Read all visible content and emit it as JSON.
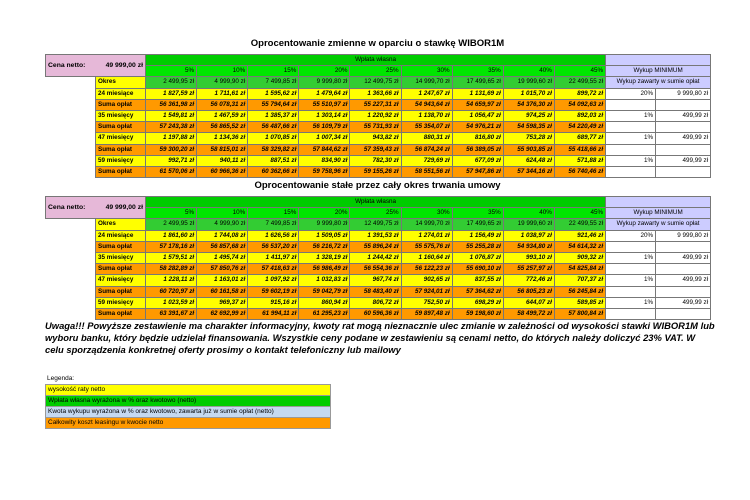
{
  "tables": [
    {
      "title": "Oprocentowanie zmienne w oparciu o stawkę WIBOR1M",
      "price_label": "Cena netto:",
      "price": "49 999,00 zł",
      "group_header": "Wpłata własna",
      "percents": [
        "5%",
        "10%",
        "15%",
        "20%",
        "25%",
        "30%",
        "35%",
        "40%",
        "45%"
      ],
      "buyout_header": "Wykup MINIMUM",
      "period_label": "Okres",
      "down_payments": [
        "2 499,95 zł",
        "4 999,90 zł",
        "7 499,85 zł",
        "9 999,80 zł",
        "12 499,75 zł",
        "14 999,70 zł",
        "17 499,65 zł",
        "19 999,60 zł",
        "22 499,55 zł"
      ],
      "buyout_included_label": "Wykup zawarty w sumie opłat",
      "rows": [
        {
          "period": "24 miesiące",
          "installments": [
            "1 827,59 zł",
            "1 711,61 zł",
            "1 595,62 zł",
            "1 479,64 zł",
            "1 363,66 zł",
            "1 247,67 zł",
            "1 131,69 zł",
            "1 015,70 zł",
            "899,72 zł"
          ],
          "buyout_pct": "20%",
          "buyout_amount": "9 999,80 zł",
          "total_label": "Suma opłat",
          "totals": [
            "56 361,98 zł",
            "56 078,31 zł",
            "55 794,64 zł",
            "55 510,97 zł",
            "55 227,31 zł",
            "54 943,64 zł",
            "54 659,97 zł",
            "54 376,30 zł",
            "54 092,63 zł"
          ]
        },
        {
          "period": "35 miesięcy",
          "installments": [
            "1 549,81 zł",
            "1 467,59 zł",
            "1 385,37 zł",
            "1 303,14 zł",
            "1 220,92 zł",
            "1 138,70 zł",
            "1 056,47 zł",
            "974,25 zł",
            "892,03 zł"
          ],
          "buyout_pct": "1%",
          "buyout_amount": "499,99 zł",
          "total_label": "Suma opłat",
          "totals": [
            "57 243,38 zł",
            "56 865,52 zł",
            "56 487,66 zł",
            "56 109,79 zł",
            "55 731,93 zł",
            "55 354,07 zł",
            "54 976,21 zł",
            "54 598,35 zł",
            "54 220,49 zł"
          ]
        },
        {
          "period": "47 miesięcy",
          "installments": [
            "1 197,88 zł",
            "1 134,36 zł",
            "1 070,85 zł",
            "1 007,34 zł",
            "943,82 zł",
            "880,31 zł",
            "816,80 zł",
            "753,28 zł",
            "689,77 zł"
          ],
          "buyout_pct": "1%",
          "buyout_amount": "499,99 zł",
          "total_label": "Suma opłat",
          "totals": [
            "59 300,20 zł",
            "58 815,01 zł",
            "58 329,82 zł",
            "57 844,62 zł",
            "57 359,43 zł",
            "56 874,24 zł",
            "56 389,05 zł",
            "55 903,85 zł",
            "55 418,66 zł"
          ]
        },
        {
          "period": "59 miesięcy",
          "installments": [
            "992,71 zł",
            "940,11 zł",
            "887,51 zł",
            "834,90 zł",
            "782,30 zł",
            "729,69 zł",
            "677,09 zł",
            "624,48 zł",
            "571,88 zł"
          ],
          "buyout_pct": "1%",
          "buyout_amount": "499,99 zł",
          "total_label": "Suma opłat",
          "totals": [
            "61 570,06 zł",
            "60 966,36 zł",
            "60 362,66 zł",
            "59 758,96 zł",
            "59 155,26 zł",
            "58 551,56 zł",
            "57 947,86 zł",
            "57 344,16 zł",
            "56 740,46 zł"
          ]
        }
      ]
    },
    {
      "title": "Oprocentowanie stałe przez cały okres trwania umowy",
      "price_label": "Cena netto:",
      "price": "49 999,00 zł",
      "group_header": "Wpłata własna",
      "percents": [
        "5%",
        "10%",
        "15%",
        "20%",
        "25%",
        "30%",
        "35%",
        "40%",
        "45%"
      ],
      "buyout_header": "Wykup MINIMUM",
      "period_label": "Okres",
      "down_payments": [
        "2 499,95 zł",
        "4 999,90 zł",
        "7 499,85 zł",
        "9 999,80 zł",
        "12 499,75 zł",
        "14 999,70 zł",
        "17 499,65 zł",
        "19 999,60 zł",
        "22 499,55 zł"
      ],
      "buyout_included_label": "Wykup zawarty w sumie opłat",
      "rows": [
        {
          "period": "24 miesiące",
          "installments": [
            "1 861,60 zł",
            "1 744,08 zł",
            "1 626,56 zł",
            "1 509,05 zł",
            "1 391,53 zł",
            "1 274,01 zł",
            "1 156,49 zł",
            "1 038,97 zł",
            "921,46 zł"
          ],
          "buyout_pct": "20%",
          "buyout_amount": "9 999,80 zł",
          "total_label": "Suma opłat",
          "totals": [
            "57 178,16 zł",
            "56 857,68 zł",
            "56 537,20 zł",
            "56 216,72 zł",
            "55 896,24 zł",
            "55 575,76 zł",
            "55 255,28 zł",
            "54 934,80 zł",
            "54 614,32 zł"
          ]
        },
        {
          "period": "35 miesięcy",
          "installments": [
            "1 579,51 zł",
            "1 495,74 zł",
            "1 411,97 zł",
            "1 328,19 zł",
            "1 244,42 zł",
            "1 160,64 zł",
            "1 076,87 zł",
            "993,10 zł",
            "909,32 zł"
          ],
          "buyout_pct": "1%",
          "buyout_amount": "499,99 zł",
          "total_label": "Suma opłat",
          "totals": [
            "58 282,89 zł",
            "57 850,76 zł",
            "57 418,63 zł",
            "56 986,49 zł",
            "56 554,36 zł",
            "56 122,23 zł",
            "55 690,10 zł",
            "55 257,97 zł",
            "54 825,84 zł"
          ]
        },
        {
          "period": "47 miesięcy",
          "installments": [
            "1 228,11 zł",
            "1 163,01 zł",
            "1 097,92 zł",
            "1 032,83 zł",
            "967,74 zł",
            "902,65 zł",
            "837,55 zł",
            "772,46 zł",
            "707,37 zł"
          ],
          "buyout_pct": "1%",
          "buyout_amount": "499,99 zł",
          "total_label": "Suma opłat",
          "totals": [
            "60 720,97 zł",
            "60 161,58 zł",
            "59 602,19 zł",
            "59 042,79 zł",
            "58 483,40 zł",
            "57 924,01 zł",
            "57 364,62 zł",
            "56 805,23 zł",
            "56 245,84 zł"
          ]
        },
        {
          "period": "59 miesięcy",
          "installments": [
            "1 023,59 zł",
            "969,37 zł",
            "915,16 zł",
            "860,94 zł",
            "806,72 zł",
            "752,50 zł",
            "698,29 zł",
            "644,07 zł",
            "589,85 zł"
          ],
          "buyout_pct": "1%",
          "buyout_amount": "499,99 zł",
          "total_label": "Suma opłat",
          "totals": [
            "63 391,67 zł",
            "62 692,99 zł",
            "61 994,11 zł",
            "61 295,23 zł",
            "60 596,36 zł",
            "59 897,48 zł",
            "59 198,60 zł",
            "58 499,72 zł",
            "57 800,84 zł"
          ]
        }
      ]
    }
  ],
  "note": "Uwaga!!! Powyższe zestawienie ma charakter informacyjny, kwoty rat mogą nieznacznie ulec zmianie w zależności od wysokości stawki WIBOR1M lub wyboru banku, który będzie udzielał finansowania. Wszystkie ceny podane w zestawieniu są cenami netto, do których należy doliczyć 23% VAT. W celu sporządzenia konkretnej oferty prosimy o kontakt telefoniczny lub mailowy",
  "legend": {
    "title": "Legenda:",
    "items": [
      {
        "label": "wysokość raty netto",
        "color": "#ffff00"
      },
      {
        "label": "Wpłata własna wyrażona w % oraz kwotowo (netto)",
        "color": "#00cc00"
      },
      {
        "label": "Kwota wykupu wyrażona w % oraz kwotowo, zawarta już w sumie opłat (netto)",
        "color": "#c5d9f1"
      },
      {
        "label": "Całkowity koszt leasingu w kwocie netto",
        "color": "#ff9900"
      }
    ]
  }
}
